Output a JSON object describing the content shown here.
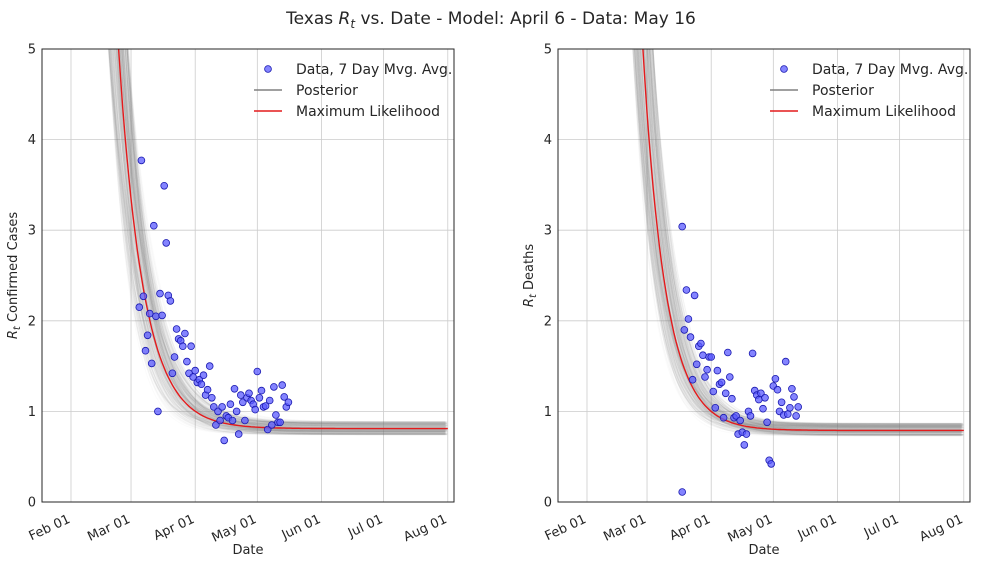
{
  "figure": {
    "title_prefix": "Texas ",
    "title_symbol_main": "R",
    "title_symbol_sub": "t",
    "title_suffix": " vs. Date - Model: April 6 - Data: May 16"
  },
  "colors": {
    "posterior": "#808080",
    "max_likelihood": "#e41a1c",
    "data_fill": "#5b5bff",
    "data_edge": "#1a1ab0",
    "grid": "#cccccc",
    "axes": "#262626"
  },
  "chart_data": [
    {
      "type": "scatter",
      "panel": "confirmed-cases",
      "xlabel": "Date",
      "ylabel_main": "R",
      "ylabel_sub": "t",
      "ylabel_suffix": " Confirmed Cases",
      "xlim": [
        "2020-01-18",
        "2020-08-04"
      ],
      "ylim": [
        0,
        5
      ],
      "x_tick_labels": [
        "Feb 01",
        "Mar 01",
        "Apr 01",
        "May 01",
        "Jun 01",
        "Jul 01",
        "Aug 01"
      ],
      "x_tick_dates": [
        "2020-02-01",
        "2020-03-01",
        "2020-04-01",
        "2020-05-01",
        "2020-06-01",
        "2020-07-01",
        "2020-08-01"
      ],
      "y_ticks": [
        0,
        1,
        2,
        3,
        4,
        5
      ],
      "grid": true,
      "legend_position": "top-right",
      "legend": [
        "Data, 7 Day Mvg. Avg.",
        "Posterior",
        "Maximum Likelihood"
      ],
      "series": [
        {
          "name": "Data, 7 Day Mvg. Avg.",
          "x": [
            "2020-03-05",
            "2020-03-06",
            "2020-03-07",
            "2020-03-08",
            "2020-03-09",
            "2020-03-10",
            "2020-03-11",
            "2020-03-12",
            "2020-03-13",
            "2020-03-14",
            "2020-03-15",
            "2020-03-16",
            "2020-03-17",
            "2020-03-18",
            "2020-03-19",
            "2020-03-20",
            "2020-03-21",
            "2020-03-22",
            "2020-03-23",
            "2020-03-24",
            "2020-03-25",
            "2020-03-26",
            "2020-03-27",
            "2020-03-28",
            "2020-03-29",
            "2020-03-30",
            "2020-03-31",
            "2020-04-01",
            "2020-04-02",
            "2020-04-03",
            "2020-04-04",
            "2020-04-05",
            "2020-04-06",
            "2020-04-07",
            "2020-04-08",
            "2020-04-09",
            "2020-04-10",
            "2020-04-11",
            "2020-04-12",
            "2020-04-13",
            "2020-04-14",
            "2020-04-15",
            "2020-04-16",
            "2020-04-17",
            "2020-04-18",
            "2020-04-19",
            "2020-04-20",
            "2020-04-21",
            "2020-04-22",
            "2020-04-23",
            "2020-04-24",
            "2020-04-25",
            "2020-04-26",
            "2020-04-27",
            "2020-04-28",
            "2020-04-29",
            "2020-04-30",
            "2020-05-01",
            "2020-05-02",
            "2020-05-03",
            "2020-05-04",
            "2020-05-05",
            "2020-05-06",
            "2020-05-07",
            "2020-05-08",
            "2020-05-09",
            "2020-05-10",
            "2020-05-11",
            "2020-05-12",
            "2020-05-13",
            "2020-05-14",
            "2020-05-15",
            "2020-05-16"
          ],
          "y": [
            2.15,
            3.77,
            2.27,
            1.67,
            1.84,
            2.08,
            1.53,
            3.05,
            2.05,
            1.0,
            2.3,
            2.06,
            3.49,
            2.86,
            2.28,
            2.22,
            1.42,
            1.6,
            1.91,
            1.8,
            1.78,
            1.72,
            1.86,
            1.55,
            1.42,
            1.72,
            1.38,
            1.45,
            1.32,
            1.35,
            1.3,
            1.4,
            1.18,
            1.24,
            1.5,
            1.15,
            1.05,
            0.85,
            1.0,
            0.9,
            1.05,
            0.68,
            0.95,
            0.93,
            1.08,
            0.9,
            1.25,
            1.0,
            0.75,
            1.18,
            1.1,
            0.9,
            1.15,
            1.2,
            1.12,
            1.08,
            1.02,
            1.44,
            1.15,
            1.23,
            1.05,
            1.06,
            0.8,
            1.12,
            0.85,
            1.27,
            0.96,
            0.88,
            0.88,
            1.29,
            1.16,
            1.05,
            1.1
          ]
        },
        {
          "name": "Maximum Likelihood",
          "model": "exponential-decay",
          "start": "2020-02-24",
          "end": "2020-08-01",
          "y_floor": 0.81,
          "amplitude": 4.19,
          "decay_days": 12.0
        },
        {
          "name": "Posterior",
          "model": "exponential-decay-ensemble",
          "start": "2020-01-22",
          "end": "2020-08-01",
          "y_floor_range": [
            0.74,
            0.89
          ],
          "decay_days_range": [
            9.5,
            15.5
          ]
        }
      ]
    },
    {
      "type": "scatter",
      "panel": "deaths",
      "xlabel": "Date",
      "ylabel_main": "R",
      "ylabel_sub": "t",
      "ylabel_suffix": " Deaths",
      "xlim": [
        "2020-01-18",
        "2020-08-04"
      ],
      "ylim": [
        0,
        5
      ],
      "x_tick_labels": [
        "Feb 01",
        "Mar 01",
        "Apr 01",
        "May 01",
        "Jun 01",
        "Jul 01",
        "Aug 01"
      ],
      "x_tick_dates": [
        "2020-02-01",
        "2020-03-01",
        "2020-04-01",
        "2020-05-01",
        "2020-06-01",
        "2020-07-01",
        "2020-08-01"
      ],
      "y_ticks": [
        0,
        1,
        2,
        3,
        4,
        5
      ],
      "grid": true,
      "legend_position": "top-right",
      "legend": [
        "Data, 7 Day Mvg. Avg.",
        "Posterior",
        "Maximum Likelihood"
      ],
      "series": [
        {
          "name": "Data, 7 Day Mvg. Avg.",
          "x": [
            "2020-03-18",
            "2020-03-18",
            "2020-03-19",
            "2020-03-20",
            "2020-03-21",
            "2020-03-22",
            "2020-03-23",
            "2020-03-24",
            "2020-03-25",
            "2020-03-26",
            "2020-03-27",
            "2020-03-28",
            "2020-03-29",
            "2020-03-30",
            "2020-03-31",
            "2020-04-01",
            "2020-04-02",
            "2020-04-03",
            "2020-04-04",
            "2020-04-05",
            "2020-04-06",
            "2020-04-07",
            "2020-04-08",
            "2020-04-09",
            "2020-04-10",
            "2020-04-11",
            "2020-04-12",
            "2020-04-13",
            "2020-04-14",
            "2020-04-15",
            "2020-04-16",
            "2020-04-17",
            "2020-04-18",
            "2020-04-19",
            "2020-04-20",
            "2020-04-21",
            "2020-04-22",
            "2020-04-23",
            "2020-04-24",
            "2020-04-25",
            "2020-04-26",
            "2020-04-27",
            "2020-04-28",
            "2020-04-29",
            "2020-04-30",
            "2020-05-01",
            "2020-05-02",
            "2020-05-03",
            "2020-05-04",
            "2020-05-05",
            "2020-05-06",
            "2020-05-07",
            "2020-05-08",
            "2020-05-09",
            "2020-05-10",
            "2020-05-11",
            "2020-05-12",
            "2020-05-13"
          ],
          "y": [
            3.04,
            0.11,
            1.9,
            2.34,
            2.02,
            1.82,
            1.35,
            2.28,
            1.52,
            1.72,
            1.75,
            1.62,
            1.38,
            1.46,
            1.6,
            1.6,
            1.22,
            1.04,
            1.45,
            1.3,
            1.32,
            0.93,
            1.2,
            1.65,
            1.38,
            1.14,
            0.93,
            0.95,
            0.75,
            0.9,
            0.77,
            0.63,
            0.75,
            1.0,
            0.95,
            1.64,
            1.23,
            1.18,
            1.13,
            1.2,
            1.03,
            1.15,
            0.88,
            0.46,
            0.42,
            1.28,
            1.36,
            1.24,
            1.0,
            1.1,
            0.96,
            1.55,
            0.97,
            1.04,
            1.25,
            1.16,
            0.95,
            1.05
          ]
        },
        {
          "name": "Maximum Likelihood",
          "model": "exponential-decay",
          "start": "2020-02-28",
          "end": "2020-08-01",
          "y_floor": 0.79,
          "amplitude": 4.21,
          "decay_days": 11.0
        },
        {
          "name": "Posterior",
          "model": "exponential-decay-ensemble",
          "start": "2020-02-14",
          "end": "2020-08-01",
          "y_floor_range": [
            0.73,
            0.87
          ],
          "decay_days_range": [
            9.0,
            13.5
          ]
        }
      ]
    }
  ]
}
